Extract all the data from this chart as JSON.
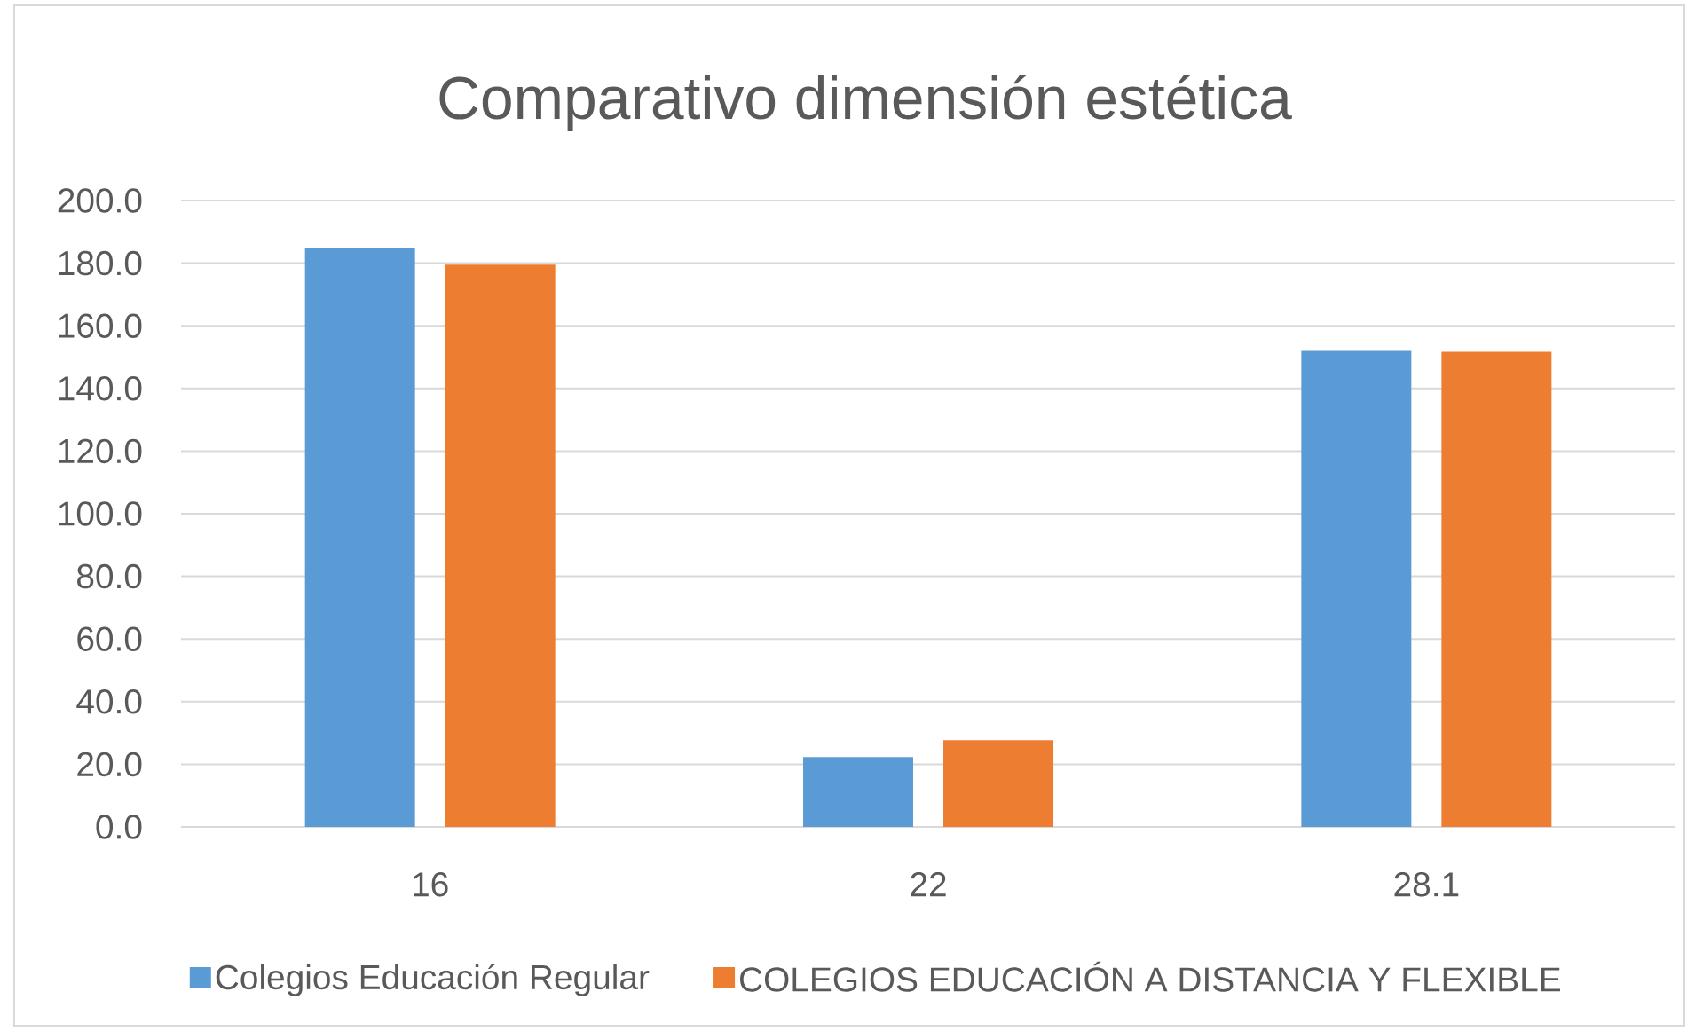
{
  "chart_data": {
    "type": "bar",
    "title": "Comparativo dimensión estética",
    "categories": [
      "16",
      "22",
      "28.1"
    ],
    "series": [
      {
        "name": "Colegios Educación Regular",
        "color": "#5b9bd5",
        "values": [
          185,
          22.3,
          152
        ]
      },
      {
        "name": "COLEGIOS EDUCACIÓN A DISTANCIA Y FLEXIBLE",
        "color": "#ed7d31",
        "values": [
          179.5,
          27.7,
          151.7
        ]
      }
    ],
    "ylim": [
      0,
      200
    ],
    "yticks": [
      {
        "value": 0,
        "label": "0.0"
      },
      {
        "value": 20,
        "label": "20.0"
      },
      {
        "value": 40,
        "label": "40.0"
      },
      {
        "value": 60,
        "label": "60.0"
      },
      {
        "value": 80,
        "label": "80.0"
      },
      {
        "value": 100,
        "label": "100.0"
      },
      {
        "value": 120,
        "label": "120.0"
      },
      {
        "value": 140,
        "label": "140.0"
      },
      {
        "value": 160,
        "label": "160.0"
      },
      {
        "value": 180,
        "label": "180.0"
      },
      {
        "value": 200,
        "label": "200.0"
      }
    ],
    "grid": "y",
    "legend": "bottom"
  }
}
